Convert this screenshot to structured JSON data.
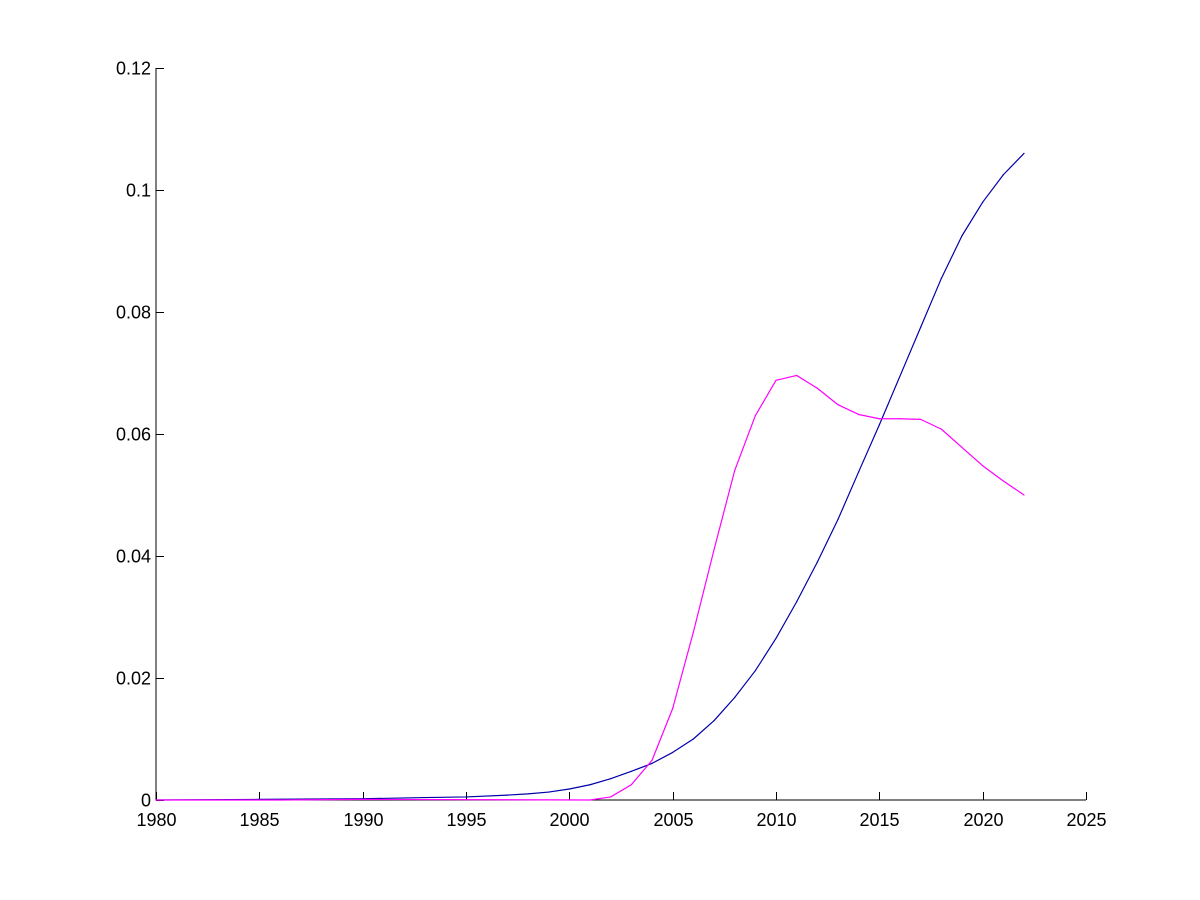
{
  "chart_data": {
    "type": "line",
    "xlim": [
      1980,
      2025
    ],
    "ylim": [
      0,
      0.12
    ],
    "x_ticks": [
      1980,
      1985,
      1990,
      1995,
      2000,
      2005,
      2010,
      2015,
      2020,
      2025
    ],
    "x_tick_labels": [
      "1980",
      "1985",
      "1990",
      "1995",
      "2000",
      "2005",
      "2010",
      "2015",
      "2020",
      "2025"
    ],
    "y_ticks": [
      0,
      0.02,
      0.04,
      0.06,
      0.08,
      0.1,
      0.12
    ],
    "y_tick_labels": [
      "0",
      "0.02",
      "0.04",
      "0.06",
      "0.08",
      "0.1",
      "0.12"
    ],
    "grid": false,
    "series": [
      {
        "color": "#0000aa",
        "x": [
          1980,
          1985,
          1990,
          1993,
          1995,
          1997,
          1998,
          1999,
          2000,
          2001,
          2002,
          2003,
          2004,
          2005,
          2006,
          2007,
          2008,
          2009,
          2010,
          2011,
          2012,
          2013,
          2014,
          2015,
          2016,
          2017,
          2018,
          2019,
          2020,
          2021,
          2022
        ],
        "y": [
          0,
          0.0001,
          0.0002,
          0.0004,
          0.0005,
          0.0008,
          0.001,
          0.0013,
          0.0018,
          0.0025,
          0.0035,
          0.0047,
          0.006,
          0.0078,
          0.01,
          0.013,
          0.0168,
          0.0212,
          0.0265,
          0.0325,
          0.039,
          0.046,
          0.0538,
          0.0615,
          0.0695,
          0.0775,
          0.0855,
          0.0925,
          0.098,
          0.1025,
          0.106
        ]
      },
      {
        "color": "#ff00ff",
        "x": [
          1980,
          1986,
          1990,
          2001,
          2002,
          2003,
          2004,
          2005,
          2006,
          2007,
          2008,
          2009,
          2010,
          2011,
          2012,
          2013,
          2014,
          2015,
          2016,
          2017,
          2018,
          2019,
          2020,
          2021,
          2022
        ],
        "y": [
          0,
          0,
          0.0001,
          0,
          0.0005,
          0.0025,
          0.0065,
          0.015,
          0.0275,
          0.041,
          0.054,
          0.063,
          0.0688,
          0.0696,
          0.0675,
          0.0648,
          0.0632,
          0.0625,
          0.0625,
          0.0624,
          0.0608,
          0.0578,
          0.0548,
          0.0523,
          0.05
        ]
      }
    ]
  }
}
